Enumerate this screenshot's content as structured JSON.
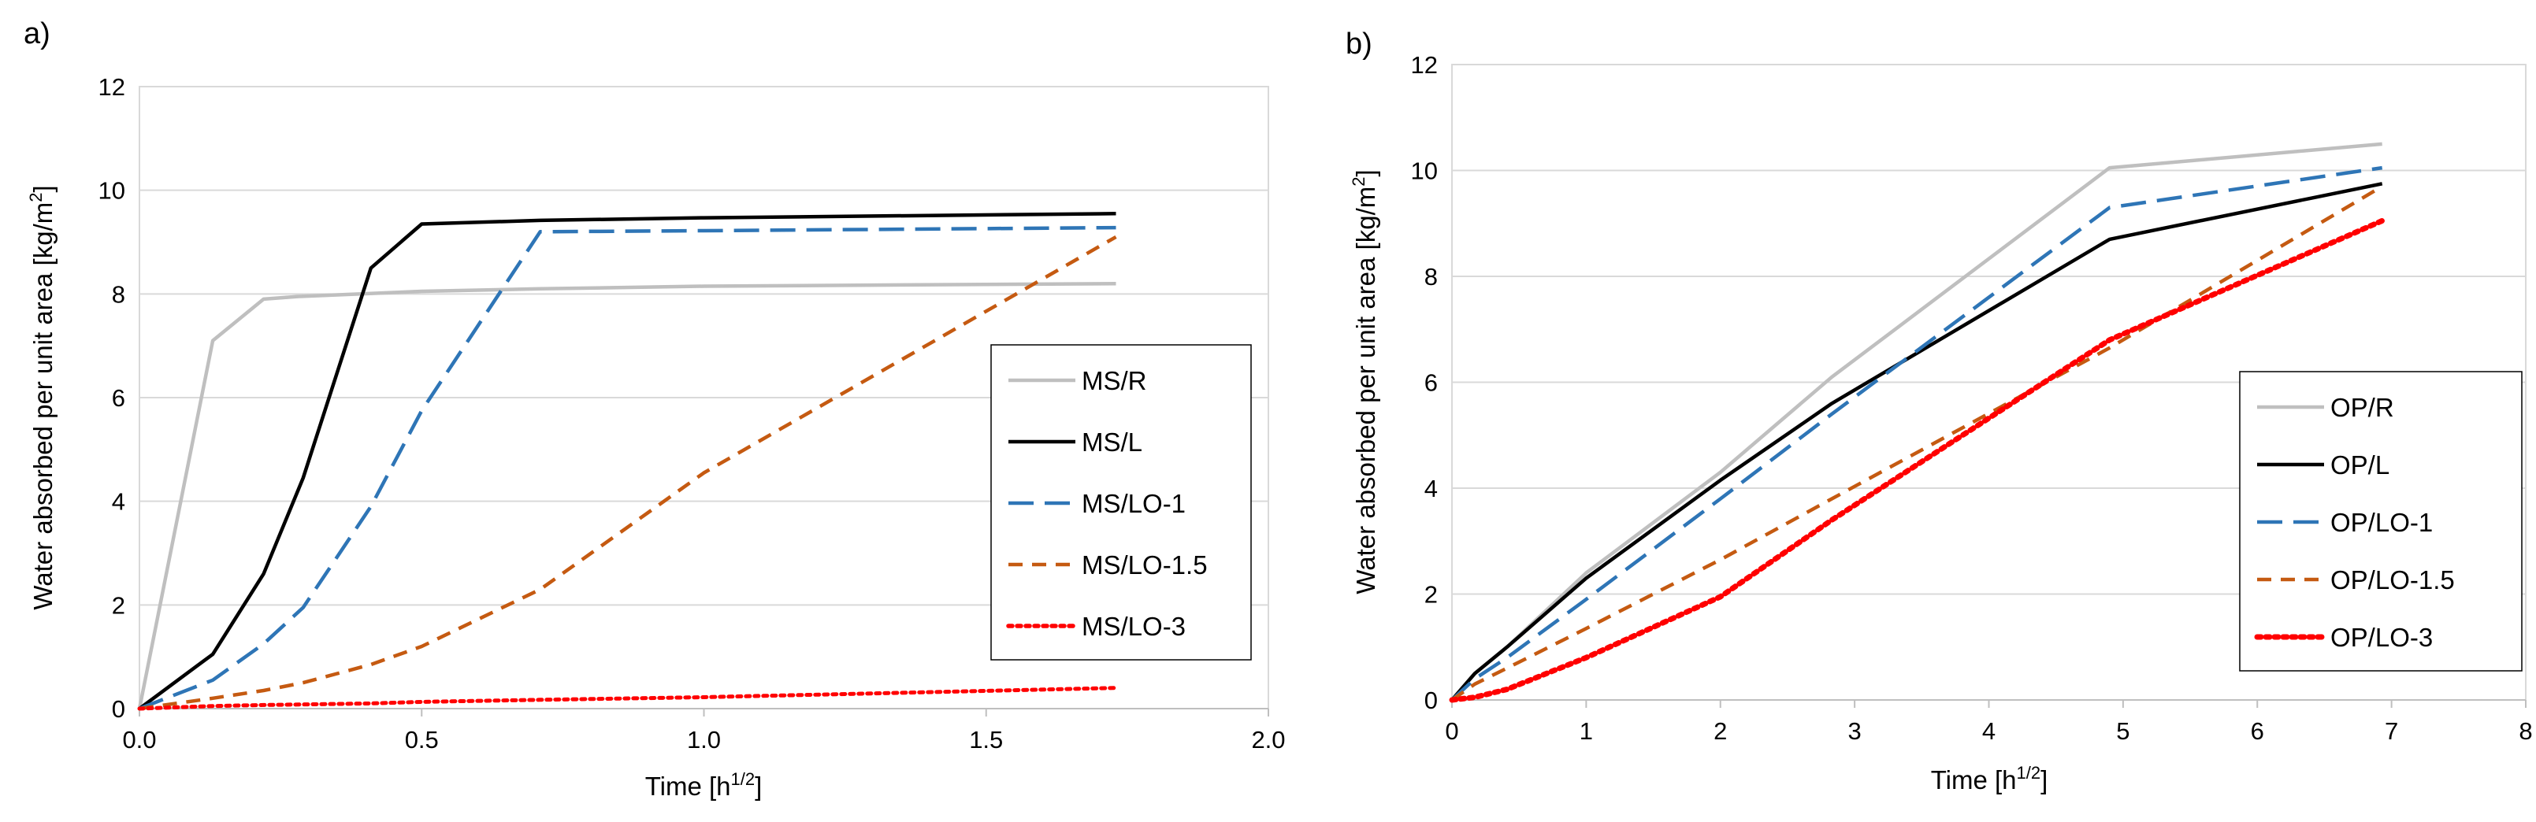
{
  "chart_data": [
    {
      "type": "line",
      "panel_label": "a)",
      "title": "",
      "xlabel": "Time [h",
      "xlabel_sup": "1/2",
      "xlabel_end": "]",
      "ylabel": "Water absorbed per unit area [kg/m",
      "ylabel_sup": "2",
      "ylabel_end": "]",
      "xlim": [
        0,
        2.0
      ],
      "ylim": [
        0,
        12
      ],
      "xticks": [
        0,
        0.5,
        1.0,
        1.5,
        2.0
      ],
      "xtick_labels": [
        "0.0",
        "0.5",
        "1.0",
        "1.5",
        "2.0"
      ],
      "yticks": [
        0,
        2,
        4,
        6,
        8,
        10,
        12
      ],
      "ytick_labels": [
        "0",
        "2",
        "4",
        "6",
        "8",
        "10",
        "12"
      ],
      "grid": "horizontal",
      "legend_position": "right",
      "series": [
        {
          "name": "MS/R",
          "color": "#bfbfbf",
          "dash": "solid",
          "x": [
            0,
            0.13,
            0.22,
            0.28,
            0.5,
            0.71,
            1.0,
            1.73
          ],
          "y": [
            0,
            7.1,
            7.9,
            7.95,
            8.05,
            8.1,
            8.15,
            8.2
          ]
        },
        {
          "name": "MS/L",
          "color": "#000000",
          "dash": "solid",
          "x": [
            0,
            0.13,
            0.22,
            0.29,
            0.41,
            0.5,
            0.71,
            1.0,
            1.73
          ],
          "y": [
            0,
            1.05,
            2.6,
            4.45,
            8.5,
            9.35,
            9.42,
            9.47,
            9.55
          ]
        },
        {
          "name": "MS/LO-1",
          "color": "#2e75b6",
          "dash": "longdash",
          "x": [
            0,
            0.13,
            0.22,
            0.29,
            0.41,
            0.5,
            0.71,
            1.0,
            1.73
          ],
          "y": [
            0,
            0.55,
            1.25,
            1.95,
            3.9,
            5.75,
            9.2,
            9.22,
            9.28
          ]
        },
        {
          "name": "MS/LO-1.5",
          "color": "#c55a11",
          "dash": "dash",
          "x": [
            0,
            0.13,
            0.22,
            0.29,
            0.41,
            0.5,
            0.71,
            1.0,
            1.73
          ],
          "y": [
            0,
            0.2,
            0.35,
            0.5,
            0.85,
            1.2,
            2.3,
            4.55,
            9.1
          ]
        },
        {
          "name": "MS/LO-3",
          "color": "#ff0000",
          "dash": "dot",
          "x": [
            0,
            0.13,
            0.22,
            0.29,
            0.41,
            0.5,
            0.71,
            1.0,
            1.73
          ],
          "y": [
            0,
            0.05,
            0.07,
            0.08,
            0.1,
            0.13,
            0.17,
            0.22,
            0.4
          ]
        }
      ]
    },
    {
      "type": "line",
      "panel_label": "b)",
      "title": "",
      "xlabel": "Time [h",
      "xlabel_sup": "1/2",
      "xlabel_end": "]",
      "ylabel": "Water absorbed per unit area [kg/m",
      "ylabel_sup": "2",
      "ylabel_end": "]",
      "xlim": [
        0,
        8
      ],
      "ylim": [
        0,
        12
      ],
      "xticks": [
        0,
        1,
        2,
        3,
        4,
        5,
        6,
        7,
        8
      ],
      "xtick_labels": [
        "0",
        "1",
        "2",
        "3",
        "4",
        "5",
        "6",
        "7",
        "8"
      ],
      "yticks": [
        0,
        2,
        4,
        6,
        8,
        10,
        12
      ],
      "ytick_labels": [
        "0",
        "2",
        "4",
        "6",
        "8",
        "10",
        "12"
      ],
      "grid": "horizontal",
      "legend_position": "right",
      "series": [
        {
          "name": "OP/R",
          "color": "#bfbfbf",
          "dash": "solid",
          "x": [
            0,
            0.17,
            0.41,
            1.0,
            2.0,
            2.83,
            4.9,
            6.93
          ],
          "y": [
            0,
            0.5,
            1.0,
            2.4,
            4.3,
            6.1,
            10.05,
            10.5
          ]
        },
        {
          "name": "OP/L",
          "color": "#000000",
          "dash": "solid",
          "x": [
            0,
            0.17,
            0.41,
            1.0,
            2.0,
            2.83,
            4.9,
            6.93
          ],
          "y": [
            0,
            0.5,
            1.0,
            2.3,
            4.15,
            5.6,
            8.7,
            9.75
          ]
        },
        {
          "name": "OP/LO-1",
          "color": "#2e75b6",
          "dash": "longdash",
          "x": [
            0,
            0.17,
            0.41,
            1.0,
            2.0,
            2.83,
            4.9,
            6.93
          ],
          "y": [
            0,
            0.4,
            0.8,
            1.9,
            3.8,
            5.4,
            9.3,
            10.05
          ]
        },
        {
          "name": "OP/LO-1.5",
          "color": "#c55a11",
          "dash": "dash",
          "x": [
            0,
            0.17,
            0.41,
            1.0,
            2.0,
            2.83,
            4.9,
            6.93
          ],
          "y": [
            0,
            0.3,
            0.6,
            1.35,
            2.65,
            3.8,
            6.65,
            9.7
          ]
        },
        {
          "name": "OP/LO-3",
          "color": "#ff0000",
          "dash": "dot",
          "x": [
            0,
            0.17,
            0.41,
            1.0,
            2.0,
            2.83,
            4.9,
            6.93
          ],
          "y": [
            0,
            0.05,
            0.2,
            0.8,
            1.95,
            3.4,
            6.8,
            9.05
          ]
        }
      ]
    }
  ]
}
